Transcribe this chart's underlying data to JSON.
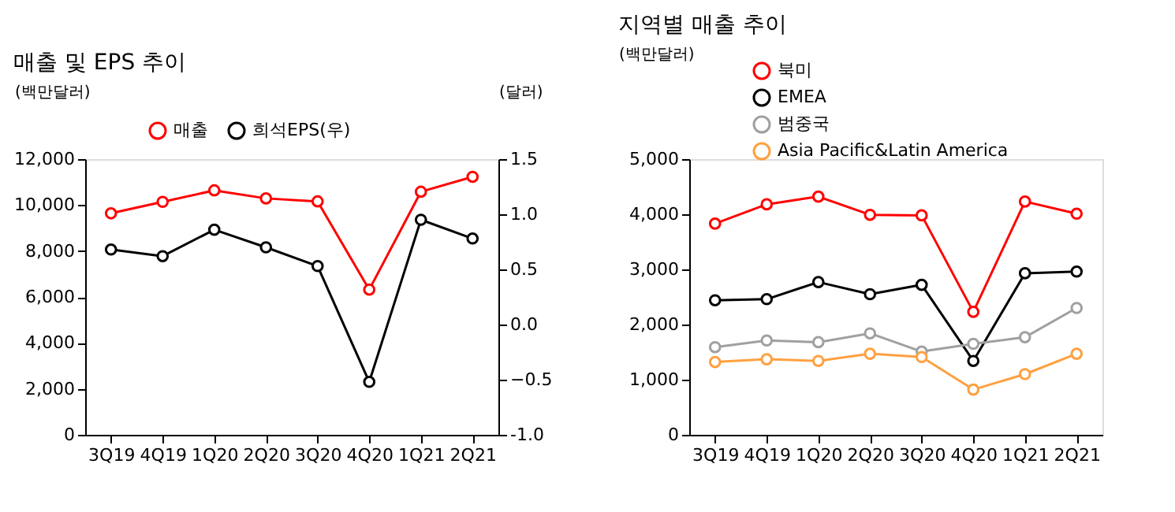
{
  "chart_data": [
    {
      "type": "line",
      "title": "매출 및 EPS 추이",
      "ylabel": "(백만달러)",
      "y2label": "(달러)",
      "categories": [
        "3Q19",
        "4Q19",
        "1Q20",
        "2Q20",
        "3Q20",
        "4Q20",
        "1Q21",
        "2Q21"
      ],
      "series": [
        {
          "name": "매출",
          "color": "#ff0000",
          "values": [
            9640,
            10140,
            10640,
            10290,
            10160,
            6320,
            10580,
            11230
          ]
        },
        {
          "name": "희석EPS(우)",
          "color": "#000000",
          "axis": "y2",
          "values": [
            0.68,
            0.62,
            0.86,
            0.7,
            0.53,
            -0.52,
            0.95,
            0.78
          ]
        }
      ],
      "ylim": [
        0,
        12000
      ],
      "yticks": [
        0,
        {
          "value": 2000,
          "label": "2,000"
        },
        {
          "value": 4000,
          "label": "4,000"
        },
        {
          "value": 6000,
          "label": "6,000"
        },
        {
          "value": 8000,
          "label": "8,000"
        },
        {
          "value": 10000,
          "label": "10,000"
        },
        {
          "value": 12000,
          "label": "12,000"
        }
      ],
      "y2lim": [
        -1.0,
        1.5
      ],
      "y2ticks": [
        {
          "value": -1,
          "label": "-1.0"
        },
        -0.5,
        {
          "value": 0,
          "label": "0.0"
        },
        0.5,
        {
          "value": 1,
          "label": "1.0"
        },
        1.5
      ],
      "marker": "circle",
      "legend": "top",
      "grid": false
    },
    {
      "type": "line",
      "title": "지역별 매출 추이",
      "ylabel": "(백만달러)",
      "categories": [
        "3Q19",
        "4Q19",
        "1Q20",
        "2Q20",
        "3Q20",
        "4Q20",
        "1Q21",
        "2Q21"
      ],
      "series": [
        {
          "name": "북미",
          "color": "#ff0000",
          "values": [
            3830,
            4180,
            4320,
            3990,
            3980,
            2230,
            4230,
            4010
          ]
        },
        {
          "name": "EMEA",
          "color": "#000000",
          "values": [
            2440,
            2460,
            2770,
            2550,
            2720,
            1340,
            2930,
            2960
          ]
        },
        {
          "name": "범중국",
          "color": "#a0a0a0",
          "values": [
            1590,
            1710,
            1680,
            1840,
            1510,
            1650,
            1770,
            2300
          ]
        },
        {
          "name": "Asia Pacific&Latin America",
          "color": "#ffa040",
          "values": [
            1320,
            1370,
            1340,
            1470,
            1410,
            820,
            1100,
            1470
          ]
        }
      ],
      "ylim": [
        0,
        5000
      ],
      "yticks": [
        0,
        {
          "value": 1000,
          "label": "1,000"
        },
        {
          "value": 2000,
          "label": "2,000"
        },
        {
          "value": 3000,
          "label": "3,000"
        },
        {
          "value": 4000,
          "label": "4,000"
        },
        {
          "value": 5000,
          "label": "5,000"
        }
      ],
      "marker": "circle",
      "legend": "top left",
      "grid": false
    }
  ]
}
